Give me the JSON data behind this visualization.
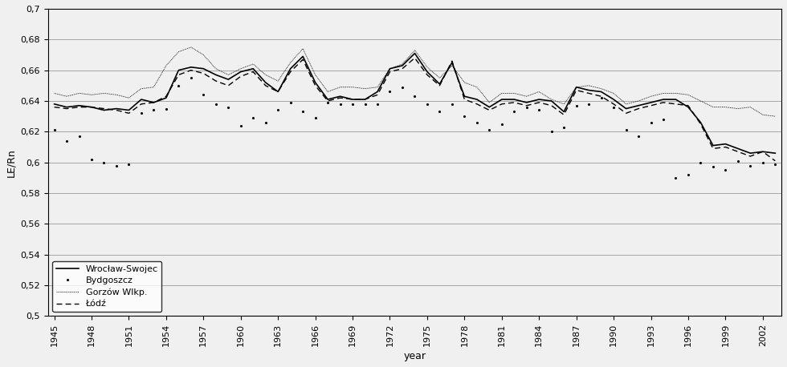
{
  "ylabel": "LE/Rn",
  "xlabel": "year",
  "ylim": [
    0.5,
    0.7
  ],
  "yticks": [
    0.5,
    0.52,
    0.54,
    0.56,
    0.58,
    0.6,
    0.62,
    0.64,
    0.66,
    0.68,
    0.7
  ],
  "ytick_labels": [
    "0,5",
    "0,52",
    "0,54",
    "0,56",
    "0,58",
    "0,6",
    "0,62",
    "0,64",
    "0,66",
    "0,68",
    "0,7"
  ],
  "xlim": [
    1944.5,
    2003.5
  ],
  "xticks": [
    1945,
    1948,
    1951,
    1954,
    1957,
    1960,
    1963,
    1966,
    1969,
    1972,
    1975,
    1978,
    1981,
    1984,
    1987,
    1990,
    1993,
    1996,
    1999,
    2002
  ],
  "wroclaw_label": "Wrocław-Swojec",
  "bydgoszcz_label": "Bydgoszcz",
  "gorzow_label": "Gorzów Wlkp.",
  "lodz_label": "Łódź",
  "wroclaw_years": [
    1945,
    1946,
    1947,
    1948,
    1949,
    1950,
    1951,
    1952,
    1953,
    1954,
    1955,
    1956,
    1957,
    1958,
    1959,
    1960,
    1961,
    1962,
    1963,
    1964,
    1965,
    1966,
    1967,
    1968,
    1969,
    1970,
    1971,
    1972,
    1973,
    1974,
    1975,
    1976,
    1977,
    1978,
    1979,
    1980,
    1981,
    1982,
    1983,
    1984,
    1985,
    1986,
    1987,
    1988,
    1989,
    1990,
    1991,
    1992,
    1993,
    1994,
    1995,
    1996,
    1997,
    1998,
    1999,
    2000,
    2001,
    2002,
    2003
  ],
  "wroclaw_values": [
    0.638,
    0.636,
    0.637,
    0.636,
    0.634,
    0.635,
    0.634,
    0.641,
    0.639,
    0.642,
    0.66,
    0.662,
    0.661,
    0.657,
    0.654,
    0.659,
    0.661,
    0.652,
    0.646,
    0.661,
    0.669,
    0.652,
    0.641,
    0.643,
    0.641,
    0.641,
    0.646,
    0.661,
    0.663,
    0.671,
    0.659,
    0.651,
    0.665,
    0.643,
    0.641,
    0.636,
    0.641,
    0.641,
    0.639,
    0.641,
    0.64,
    0.633,
    0.649,
    0.647,
    0.646,
    0.641,
    0.635,
    0.637,
    0.639,
    0.641,
    0.641,
    0.636,
    0.626,
    0.611,
    0.612,
    0.609,
    0.606,
    0.607,
    0.606
  ],
  "bydgoszcz_years": [
    1945,
    1946,
    1947,
    1948,
    1949,
    1950,
    1951,
    1952,
    1953,
    1954,
    1955,
    1956,
    1957,
    1958,
    1959,
    1960,
    1961,
    1962,
    1963,
    1964,
    1965,
    1966,
    1967,
    1968,
    1969,
    1970,
    1971,
    1972,
    1973,
    1974,
    1975,
    1976,
    1977,
    1978,
    1979,
    1980,
    1981,
    1982,
    1983,
    1984,
    1985,
    1986,
    1987,
    1988,
    1989,
    1990,
    1991,
    1992,
    1993,
    1994,
    1995,
    1996,
    1997,
    1998,
    1999,
    2000,
    2001,
    2002,
    2003
  ],
  "bydgoszcz_values": [
    0.621,
    0.614,
    0.617,
    0.602,
    0.6,
    0.598,
    0.599,
    0.632,
    0.634,
    0.635,
    0.65,
    0.655,
    0.644,
    0.638,
    0.636,
    0.624,
    0.629,
    0.626,
    0.634,
    0.639,
    0.633,
    0.629,
    0.639,
    0.638,
    0.638,
    0.638,
    0.638,
    0.646,
    0.649,
    0.643,
    0.638,
    0.633,
    0.638,
    0.63,
    0.626,
    0.621,
    0.625,
    0.633,
    0.636,
    0.634,
    0.62,
    0.623,
    0.637,
    0.638,
    0.642,
    0.636,
    0.621,
    0.617,
    0.626,
    0.628,
    0.59,
    0.592,
    0.6,
    0.597,
    0.595,
    0.601,
    0.598,
    0.6,
    0.599
  ],
  "gorzow_years": [
    1945,
    1946,
    1947,
    1948,
    1949,
    1950,
    1951,
    1952,
    1953,
    1954,
    1955,
    1956,
    1957,
    1958,
    1959,
    1960,
    1961,
    1962,
    1963,
    1964,
    1965,
    1966,
    1967,
    1968,
    1969,
    1970,
    1971,
    1972,
    1973,
    1974,
    1975,
    1976,
    1977,
    1978,
    1979,
    1980,
    1981,
    1982,
    1983,
    1984,
    1985,
    1986,
    1987,
    1988,
    1989,
    1990,
    1991,
    1992,
    1993,
    1994,
    1995,
    1996,
    1997,
    1998,
    1999,
    2000,
    2001,
    2002,
    2003
  ],
  "gorzow_values": [
    0.645,
    0.643,
    0.645,
    0.644,
    0.645,
    0.644,
    0.642,
    0.648,
    0.649,
    0.663,
    0.672,
    0.675,
    0.67,
    0.661,
    0.657,
    0.661,
    0.664,
    0.657,
    0.653,
    0.665,
    0.674,
    0.657,
    0.646,
    0.649,
    0.649,
    0.648,
    0.649,
    0.661,
    0.664,
    0.673,
    0.662,
    0.655,
    0.663,
    0.652,
    0.649,
    0.639,
    0.645,
    0.645,
    0.643,
    0.646,
    0.641,
    0.638,
    0.649,
    0.65,
    0.648,
    0.645,
    0.638,
    0.64,
    0.643,
    0.645,
    0.645,
    0.644,
    0.64,
    0.636,
    0.636,
    0.635,
    0.636,
    0.631,
    0.63
  ],
  "lodz_years": [
    1945,
    1946,
    1947,
    1948,
    1949,
    1950,
    1951,
    1952,
    1953,
    1954,
    1955,
    1956,
    1957,
    1958,
    1959,
    1960,
    1961,
    1962,
    1963,
    1964,
    1965,
    1966,
    1967,
    1968,
    1969,
    1970,
    1971,
    1972,
    1973,
    1974,
    1975,
    1976,
    1977,
    1978,
    1979,
    1980,
    1981,
    1982,
    1983,
    1984,
    1985,
    1986,
    1987,
    1988,
    1989,
    1990,
    1991,
    1992,
    1993,
    1994,
    1995,
    1996,
    1997,
    1998,
    1999,
    2000,
    2001,
    2002,
    2003
  ],
  "lodz_values": [
    0.636,
    0.635,
    0.636,
    0.636,
    0.635,
    0.634,
    0.632,
    0.638,
    0.639,
    0.643,
    0.657,
    0.66,
    0.658,
    0.653,
    0.65,
    0.656,
    0.659,
    0.65,
    0.646,
    0.659,
    0.667,
    0.65,
    0.64,
    0.642,
    0.641,
    0.641,
    0.644,
    0.659,
    0.661,
    0.668,
    0.657,
    0.65,
    0.666,
    0.641,
    0.638,
    0.634,
    0.638,
    0.639,
    0.637,
    0.639,
    0.637,
    0.631,
    0.647,
    0.645,
    0.643,
    0.638,
    0.632,
    0.635,
    0.637,
    0.639,
    0.638,
    0.637,
    0.625,
    0.609,
    0.61,
    0.607,
    0.604,
    0.607,
    0.601
  ],
  "background_color": "#f0f0f0",
  "grid_color": "#888888"
}
